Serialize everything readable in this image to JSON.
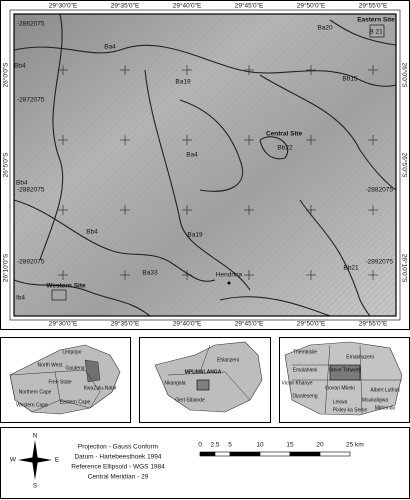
{
  "main_map": {
    "top_lon_labels": [
      "29°30'0\"E",
      "29°35'0\"E",
      "29°40'0\"E",
      "29°45'0\"E",
      "29°50'0\"E",
      "29°55'0\"E"
    ],
    "bottom_lon_labels": [
      "29°30'0\"E",
      "29°35'0\"E",
      "29°40'0\"E",
      "29°45'0\"E",
      "29°50'0\"E",
      "29°55'0\"E"
    ],
    "left_lat_labels": [
      "26°0'0\"S",
      "26°5'0\"S",
      "26°10'0\"S"
    ],
    "right_lat_labels": [
      "26°0'0\"S",
      "26°5'0\"S",
      "26°10'0\"S"
    ],
    "left_grid_labels": [
      "-2862075",
      "-2872075",
      "-2882075",
      "-2892075"
    ],
    "right_grid_labels": [
      "-2882075",
      "-2892075"
    ],
    "labels": [
      "Ba4",
      "Bb4",
      "Ba19",
      "Ba20",
      "Eastern Site",
      "B 21",
      "Bb15",
      "Central Site",
      "Bb22",
      "Ba4",
      "Bb4",
      "Bb4",
      "Ba19",
      "Ba33",
      "Hendrina",
      "Bb21",
      "Western Site",
      "Ib4"
    ]
  },
  "insets": {
    "south_africa": [
      "Limpopo",
      "North West",
      "Gauteng",
      "Free State",
      "KwaZulu-Natal",
      "Northern Cape",
      "Eastern Cape",
      "Western Cape"
    ],
    "mpumalanga": [
      "Ehlanzeni",
      "MPUMALANGA",
      "Nkangala",
      "Gert Sibande"
    ],
    "districts": [
      "Emakhazeni",
      "Thembisile",
      "Steve Tshwete",
      "Emalahleni",
      "Victor Khanye",
      "Govan Mbeki",
      "Albert Luthuli",
      "Msukaligwa",
      "Dipaleseng",
      "Lekwa",
      "Pixley ka Seme",
      "Mkhondo"
    ]
  },
  "legend": {
    "north_arrow": [
      "N",
      "E",
      "S",
      "W"
    ],
    "projection": [
      "Projection - Gauss Conform",
      "Datum - Hartebeesthoek 1994",
      "Reference Ellipsoid - WGS 1984",
      "Central Meridian - 29"
    ],
    "scale": [
      "0",
      "2.5",
      "5",
      "10",
      "15",
      "20",
      "25 km"
    ]
  }
}
